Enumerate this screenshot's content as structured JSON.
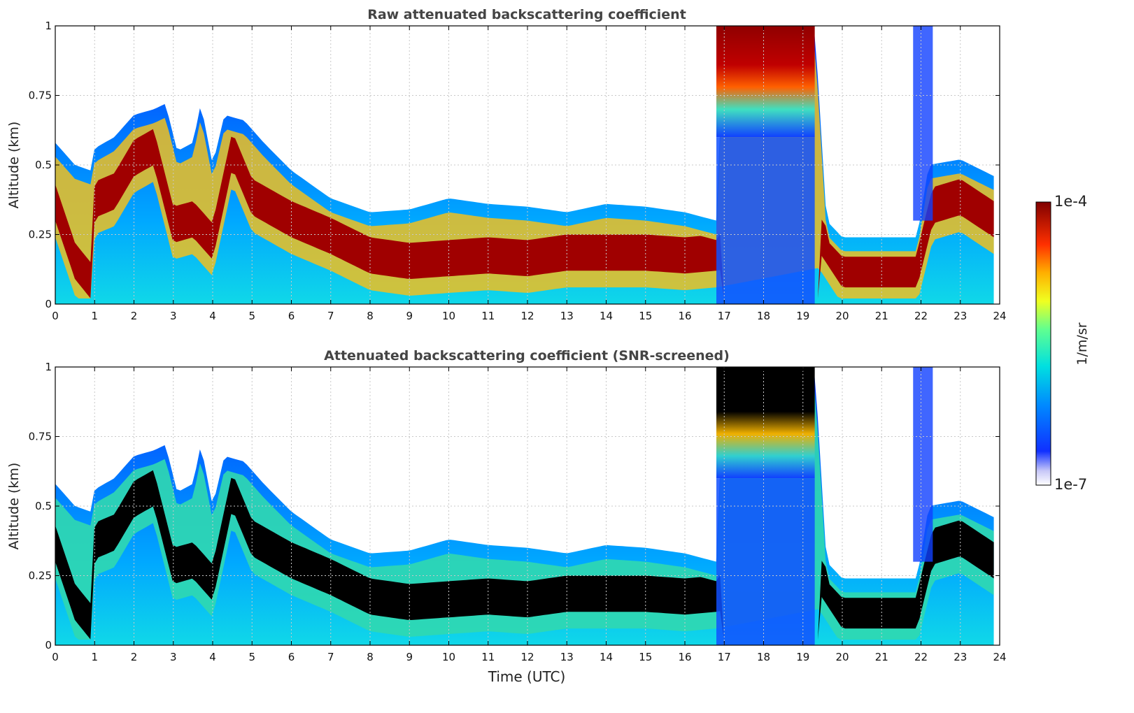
{
  "colors": {
    "text": "#333333",
    "title": "#444444",
    "frame": "#000000",
    "grid": "#c8c8c8",
    "screened_core": "#000000"
  },
  "colorbar": {
    "label": "1/m/sr",
    "max_label": "1e-4",
    "min_label": "1e-7",
    "colormap": "jet-like (white → blue → cyan → yellow → red → dark red)"
  },
  "chart_data": [
    {
      "type": "heatmap",
      "title": "Raw attenuated backscattering coefficient",
      "xlabel": "",
      "ylabel": "Altitude (km)",
      "xlim": [
        0,
        24
      ],
      "ylim": [
        0,
        1
      ],
      "x_ticks": [
        "0",
        "1",
        "2",
        "3",
        "4",
        "5",
        "6",
        "7",
        "8",
        "9",
        "10",
        "11",
        "12",
        "13",
        "14",
        "15",
        "16",
        "17",
        "18",
        "19",
        "20",
        "21",
        "22",
        "23",
        "24"
      ],
      "y_ticks": [
        "0",
        "0.25",
        "0.5",
        "0.75",
        "1"
      ],
      "grid": true,
      "data_end_time": 23.85,
      "boundary_layer_top_km": [
        [
          0.0,
          0.58
        ],
        [
          0.5,
          0.5
        ],
        [
          0.9,
          0.48
        ],
        [
          1.0,
          0.56
        ],
        [
          1.5,
          0.6
        ],
        [
          2.0,
          0.68
        ],
        [
          2.5,
          0.7
        ],
        [
          2.8,
          0.72
        ],
        [
          3.1,
          0.55
        ],
        [
          3.5,
          0.58
        ],
        [
          3.7,
          0.72
        ],
        [
          4.0,
          0.5
        ],
        [
          4.3,
          0.68
        ],
        [
          4.8,
          0.66
        ],
        [
          5.3,
          0.58
        ],
        [
          6.0,
          0.48
        ],
        [
          7.0,
          0.38
        ],
        [
          8.0,
          0.33
        ],
        [
          9.0,
          0.34
        ],
        [
          10.0,
          0.38
        ],
        [
          11.0,
          0.36
        ],
        [
          12.0,
          0.35
        ],
        [
          13.0,
          0.33
        ],
        [
          14.0,
          0.36
        ],
        [
          15.0,
          0.35
        ],
        [
          16.0,
          0.33
        ],
        [
          16.8,
          0.3
        ],
        [
          17.0,
          1.0
        ],
        [
          19.3,
          1.0
        ],
        [
          19.6,
          0.3
        ],
        [
          20.0,
          0.24
        ],
        [
          21.0,
          0.24
        ],
        [
          21.9,
          0.24
        ],
        [
          22.2,
          0.5
        ],
        [
          23.0,
          0.52
        ],
        [
          23.85,
          0.46
        ]
      ],
      "aerosol_core_km": [
        [
          0.0,
          0.36
        ],
        [
          0.5,
          0.15
        ],
        [
          0.9,
          0.08
        ],
        [
          1.0,
          0.37
        ],
        [
          1.5,
          0.4
        ],
        [
          2.0,
          0.52
        ],
        [
          2.5,
          0.56
        ],
        [
          3.0,
          0.28
        ],
        [
          3.5,
          0.3
        ],
        [
          4.0,
          0.22
        ],
        [
          4.5,
          0.55
        ],
        [
          5.0,
          0.38
        ],
        [
          6.0,
          0.3
        ],
        [
          7.0,
          0.24
        ],
        [
          8.0,
          0.17
        ],
        [
          9.0,
          0.15
        ],
        [
          10.0,
          0.16
        ],
        [
          11.0,
          0.17
        ],
        [
          12.0,
          0.16
        ],
        [
          13.0,
          0.18
        ],
        [
          14.0,
          0.18
        ],
        [
          15.0,
          0.18
        ],
        [
          16.0,
          0.17
        ],
        [
          16.8,
          0.18
        ],
        [
          19.4,
          0.25
        ],
        [
          20.0,
          0.12
        ],
        [
          21.0,
          0.12
        ],
        [
          21.9,
          0.12
        ],
        [
          22.3,
          0.35
        ],
        [
          23.0,
          0.38
        ],
        [
          23.85,
          0.3
        ]
      ],
      "cloud_layer": {
        "start": 16.8,
        "end": 19.3,
        "base_km": 0.8,
        "extra_start": 21.8,
        "extra_end": 22.3
      }
    },
    {
      "type": "heatmap",
      "title": "Attenuated backscattering coefficient (SNR-screened)",
      "xlabel": "Time (UTC)",
      "ylabel": "Altitude (km)",
      "xlim": [
        0,
        24
      ],
      "ylim": [
        0,
        1
      ],
      "x_ticks": [
        "0",
        "1",
        "2",
        "3",
        "4",
        "5",
        "6",
        "7",
        "8",
        "9",
        "10",
        "11",
        "12",
        "13",
        "14",
        "15",
        "16",
        "17",
        "18",
        "19",
        "20",
        "21",
        "22",
        "23",
        "24"
      ],
      "y_ticks": [
        "0",
        "0.25",
        "0.5",
        "0.75",
        "1"
      ],
      "grid": true,
      "screened_values_shown_in": "black"
    }
  ]
}
